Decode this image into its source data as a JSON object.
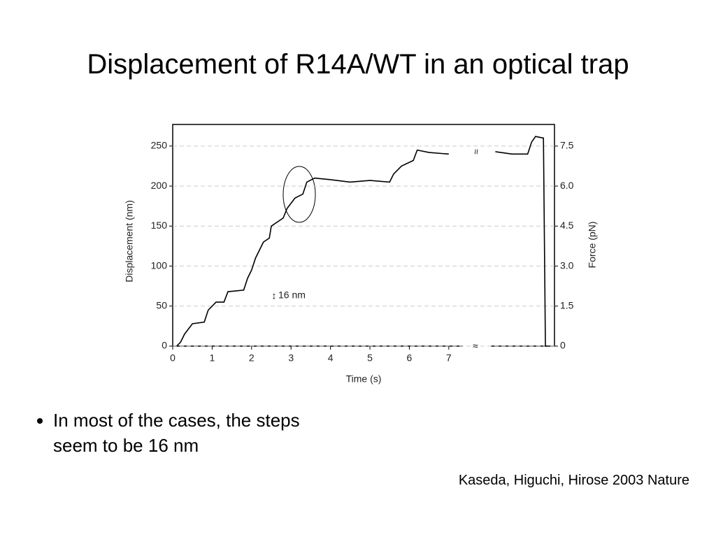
{
  "title": "Displacement of R14A/WT in an optical trap",
  "bullets": [
    "In most of the cases, the steps seem to be 16 nm"
  ],
  "citation": "Kaseda, Higuchi, Hirose 2003 Nature",
  "chart_data": {
    "type": "line",
    "x_label": "Time (s)",
    "y_label": "Displacement (nm)",
    "y2_label": "Force (pN)",
    "annotation": "16 nm",
    "xlim": [
      0,
      9.68
    ],
    "xticks": [
      0,
      1,
      2,
      3,
      4,
      5,
      6,
      7
    ],
    "ylim": [
      0,
      277
    ],
    "yticks": [
      0,
      50,
      100,
      150,
      200,
      250
    ],
    "y2lim": [
      0,
      8.31
    ],
    "y2ticks": [
      0,
      1.5,
      {
        "value": 3,
        "label": "3.0"
      },
      4.5,
      {
        "value": 6,
        "label": "6.0"
      },
      7.5
    ],
    "grid": true,
    "series": [
      {
        "color": "#000000",
        "x": [
          0.1,
          0.2,
          0.3,
          0.5,
          0.8,
          0.9,
          1.1,
          1.3,
          1.4,
          1.8,
          1.9,
          2.0,
          2.1,
          2.3,
          2.45,
          2.5,
          2.8,
          2.9,
          3.1,
          3.3,
          3.4,
          3.6,
          4.0,
          4.5,
          5.0,
          5.5,
          5.6,
          5.8,
          6.1,
          6.2,
          6.5,
          7.0
        ],
        "values": [
          0,
          5,
          15,
          28,
          30,
          45,
          55,
          55,
          68,
          70,
          85,
          95,
          110,
          130,
          135,
          150,
          160,
          172,
          185,
          190,
          205,
          210,
          208,
          205,
          207,
          205,
          215,
          225,
          232,
          245,
          242,
          240
        ]
      },
      {
        "color": "#000000",
        "x": [
          8.18,
          8.6,
          9.0,
          9.1,
          9.2,
          9.4,
          9.45,
          9.5
        ],
        "values": [
          243,
          240,
          240,
          255,
          262,
          260,
          0,
          0
        ]
      }
    ]
  }
}
